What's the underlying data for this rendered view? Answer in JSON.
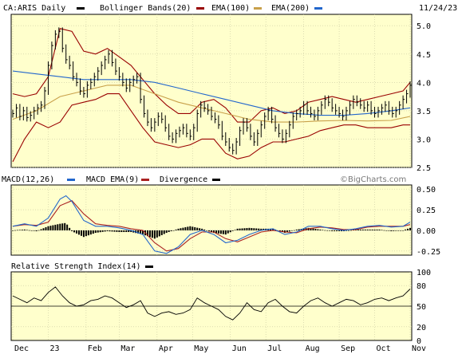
{
  "header": {
    "symbol_label": "CA:ARIS Daily",
    "bollinger_label": "Bollinger Bands(20)",
    "ema100_label": "EMA(100)",
    "ema200_label": "EMA(200)",
    "date": "11/24/23"
  },
  "watermark": "©BigCharts.com",
  "colors": {
    "background": "#ffffcc",
    "price": "#000000",
    "bollinger": "#990000",
    "ema100": "#c8a04a",
    "ema200": "#2266cc",
    "macd": "#2266cc",
    "macd_ema": "#aa2222",
    "divergence": "#000000",
    "rsi": "#000000"
  },
  "chart_data": [
    {
      "type": "line",
      "panel": "price",
      "legend": [
        "CA:ARIS Daily",
        "Bollinger Bands(20)",
        "EMA(100)",
        "EMA(200)"
      ],
      "yticks": [
        2.5,
        3.0,
        3.5,
        4.0,
        4.5,
        5.0
      ],
      "ylim": [
        2.5,
        5.2
      ],
      "grid": true,
      "series": [
        {
          "name": "CA:ARIS Daily",
          "x": [
            0,
            3,
            6,
            9,
            12,
            15,
            18,
            21,
            24,
            27,
            30,
            33,
            36,
            39,
            42,
            45,
            48,
            51,
            54,
            57,
            60,
            63,
            66,
            69,
            72,
            75,
            78,
            81,
            84,
            87,
            90,
            93,
            96,
            99,
            102,
            105,
            108,
            111,
            114,
            117,
            120,
            123,
            126,
            129,
            132,
            135,
            138,
            141,
            144,
            147,
            150,
            153,
            156,
            159,
            162,
            165,
            168,
            171,
            174,
            177,
            180,
            183,
            186,
            189,
            192,
            195,
            198,
            201,
            204,
            207,
            210,
            213,
            216,
            219,
            222,
            225,
            228,
            231,
            234,
            237,
            240,
            243,
            246,
            249,
            252,
            255,
            258,
            261,
            264,
            267,
            270,
            273,
            276,
            279,
            282,
            285,
            288,
            291,
            294,
            297,
            300,
            303,
            306,
            309,
            312,
            315,
            318,
            321,
            324,
            327,
            330,
            333,
            336
          ],
          "values": [
            3.45,
            3.55,
            3.4,
            3.5,
            3.38,
            3.42,
            3.5,
            3.55,
            3.6,
            3.85,
            4.3,
            4.65,
            4.85,
            4.9,
            4.6,
            4.4,
            4.3,
            4.1,
            4.0,
            3.85,
            3.8,
            3.95,
            4.0,
            4.1,
            4.2,
            4.3,
            4.4,
            4.5,
            4.35,
            4.2,
            4.1,
            4.0,
            3.9,
            4.0,
            4.05,
            4.1,
            3.7,
            3.45,
            3.3,
            3.2,
            3.3,
            3.4,
            3.35,
            3.2,
            3.05,
            3.0,
            3.1,
            3.15,
            3.2,
            3.1,
            3.05,
            3.2,
            3.45,
            3.6,
            3.55,
            3.5,
            3.4,
            3.35,
            3.25,
            3.05,
            2.95,
            2.85,
            2.8,
            2.95,
            3.15,
            3.3,
            3.2,
            3.05,
            2.95,
            3.1,
            3.25,
            3.4,
            3.5,
            3.35,
            3.2,
            3.1,
            3.0,
            3.1,
            3.25,
            3.4,
            3.45,
            3.5,
            3.6,
            3.5,
            3.45,
            3.4,
            3.5,
            3.6,
            3.7,
            3.65,
            3.55,
            3.5,
            3.45,
            3.4,
            3.5,
            3.6,
            3.7,
            3.65,
            3.6,
            3.55,
            3.6,
            3.5,
            3.45,
            3.5,
            3.55,
            3.6,
            3.5,
            3.45,
            3.5,
            3.6,
            3.7,
            3.8,
            3.95
          ]
        },
        {
          "name": "Bollinger Bands(20)",
          "x": [
            0,
            10,
            20,
            30,
            40,
            50,
            60,
            70,
            80,
            90,
            100,
            110,
            120,
            130,
            140,
            150,
            160,
            170,
            180,
            190,
            200,
            210,
            220,
            230,
            240,
            250,
            260,
            270,
            280,
            290,
            300,
            310,
            320,
            330,
            336
          ],
          "upper": [
            3.8,
            3.75,
            3.8,
            4.1,
            4.95,
            4.9,
            4.55,
            4.5,
            4.6,
            4.45,
            4.3,
            4.05,
            3.8,
            3.6,
            3.45,
            3.45,
            3.65,
            3.7,
            3.55,
            3.3,
            3.3,
            3.5,
            3.55,
            3.45,
            3.5,
            3.65,
            3.7,
            3.75,
            3.7,
            3.65,
            3.7,
            3.75,
            3.8,
            3.85,
            4.0
          ],
          "lower": [
            2.6,
            3.0,
            3.3,
            3.2,
            3.3,
            3.6,
            3.65,
            3.7,
            3.8,
            3.8,
            3.5,
            3.2,
            2.95,
            2.9,
            2.85,
            2.9,
            3.0,
            3.0,
            2.75,
            2.65,
            2.7,
            2.85,
            2.95,
            2.95,
            3.0,
            3.05,
            3.15,
            3.2,
            3.25,
            3.25,
            3.2,
            3.2,
            3.2,
            3.25,
            3.25
          ]
        },
        {
          "name": "EMA(100)",
          "x": [
            0,
            20,
            40,
            60,
            80,
            100,
            120,
            140,
            160,
            180,
            200,
            220,
            240,
            260,
            280,
            300,
            320,
            336
          ],
          "values": [
            3.35,
            3.5,
            3.75,
            3.85,
            3.95,
            3.95,
            3.8,
            3.65,
            3.55,
            3.45,
            3.35,
            3.3,
            3.3,
            3.32,
            3.33,
            3.32,
            3.33,
            3.4
          ]
        },
        {
          "name": "EMA(200)",
          "x": [
            0,
            20,
            40,
            60,
            80,
            100,
            120,
            140,
            160,
            180,
            200,
            220,
            240,
            260,
            280,
            300,
            320,
            336
          ],
          "values": [
            4.2,
            4.15,
            4.1,
            4.05,
            4.05,
            4.05,
            4.0,
            3.9,
            3.8,
            3.7,
            3.6,
            3.5,
            3.45,
            3.42,
            3.42,
            3.45,
            3.5,
            3.55
          ]
        }
      ]
    },
    {
      "type": "line",
      "panel": "macd",
      "legend": [
        "MACD(12,26)",
        "MACD EMA(9)",
        "Divergence"
      ],
      "yticks": [
        0.5,
        0.25,
        0.0,
        -0.25
      ],
      "ylim": [
        -0.3,
        0.55
      ],
      "grid": true,
      "series": [
        {
          "name": "MACD(12,26)",
          "x": [
            0,
            10,
            20,
            30,
            40,
            45,
            50,
            60,
            70,
            80,
            90,
            100,
            110,
            120,
            130,
            140,
            150,
            160,
            170,
            180,
            190,
            200,
            210,
            220,
            230,
            240,
            250,
            260,
            270,
            280,
            290,
            300,
            310,
            320,
            330,
            336
          ],
          "values": [
            0.05,
            0.08,
            0.05,
            0.15,
            0.38,
            0.42,
            0.35,
            0.12,
            0.05,
            0.05,
            0.03,
            0.0,
            -0.05,
            -0.25,
            -0.28,
            -0.2,
            -0.05,
            0.0,
            -0.05,
            -0.15,
            -0.12,
            -0.05,
            0.0,
            0.02,
            -0.05,
            -0.02,
            0.05,
            0.05,
            0.02,
            0.0,
            0.02,
            0.05,
            0.06,
            0.04,
            0.05,
            0.1
          ]
        },
        {
          "name": "MACD EMA(9)",
          "x": [
            0,
            10,
            20,
            30,
            40,
            50,
            60,
            70,
            80,
            90,
            100,
            110,
            120,
            130,
            140,
            150,
            160,
            170,
            180,
            190,
            200,
            210,
            220,
            230,
            240,
            250,
            260,
            270,
            280,
            290,
            300,
            310,
            320,
            330,
            336
          ],
          "values": [
            0.05,
            0.07,
            0.06,
            0.1,
            0.3,
            0.36,
            0.2,
            0.08,
            0.06,
            0.05,
            0.02,
            0.0,
            -0.15,
            -0.25,
            -0.22,
            -0.1,
            -0.02,
            -0.02,
            -0.1,
            -0.14,
            -0.08,
            -0.02,
            0.0,
            -0.02,
            -0.03,
            0.02,
            0.04,
            0.03,
            0.01,
            0.01,
            0.04,
            0.05,
            0.05,
            0.05,
            0.07
          ]
        }
      ]
    },
    {
      "type": "line",
      "panel": "rsi",
      "legend": [
        "Relative Strength Index(14)"
      ],
      "yticks": [
        100,
        80,
        50,
        20,
        0
      ],
      "ylim": [
        0,
        100
      ],
      "grid": true,
      "series": [
        {
          "name": "Relative Strength Index(14)",
          "x": [
            0,
            6,
            12,
            18,
            24,
            30,
            36,
            42,
            48,
            54,
            60,
            66,
            72,
            78,
            84,
            90,
            96,
            102,
            108,
            114,
            120,
            126,
            132,
            138,
            144,
            150,
            156,
            162,
            168,
            174,
            180,
            186,
            192,
            198,
            204,
            210,
            216,
            222,
            228,
            234,
            240,
            246,
            252,
            258,
            264,
            270,
            276,
            282,
            288,
            294,
            300,
            306,
            312,
            318,
            324,
            330,
            336
          ],
          "values": [
            65,
            60,
            55,
            62,
            58,
            70,
            78,
            65,
            55,
            50,
            52,
            58,
            60,
            65,
            62,
            55,
            48,
            52,
            58,
            40,
            35,
            40,
            42,
            38,
            40,
            45,
            62,
            55,
            50,
            45,
            35,
            30,
            40,
            55,
            45,
            42,
            55,
            60,
            50,
            42,
            40,
            50,
            58,
            62,
            55,
            50,
            55,
            60,
            58,
            52,
            55,
            60,
            62,
            58,
            62,
            65,
            75
          ]
        }
      ]
    }
  ],
  "x_axis": {
    "labels": [
      "Dec",
      "23",
      "Feb",
      "Mar",
      "Apr",
      "May",
      "Jun",
      "Jul",
      "Aug",
      "Sep",
      "Oct",
      "Nov"
    ],
    "positions": [
      0,
      30,
      62,
      90,
      122,
      152,
      184,
      214,
      246,
      276,
      306,
      336
    ]
  },
  "macd_legend": {
    "macd_label": "MACD(12,26)",
    "ema_label": "MACD EMA(9)",
    "div_label": "Divergence"
  },
  "rsi_legend": {
    "label": "Relative Strength Index(14)"
  }
}
